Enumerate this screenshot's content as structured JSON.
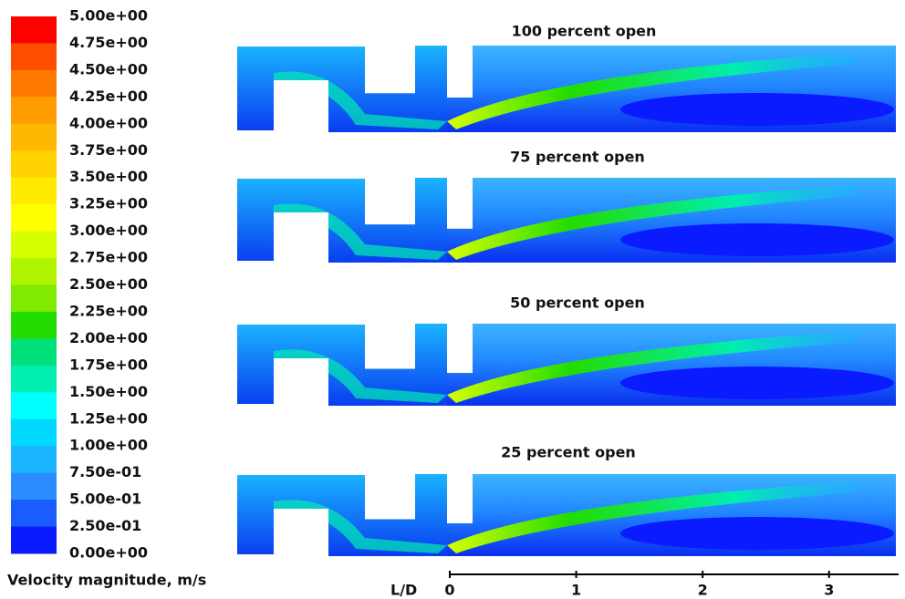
{
  "colorbar": {
    "title": "Velocity magnitude, m/s",
    "labels": [
      "5.00e+00",
      "4.75e+00",
      "4.50e+00",
      "4.25e+00",
      "4.00e+00",
      "3.75e+00",
      "3.50e+00",
      "3.25e+00",
      "3.00e+00",
      "2.75e+00",
      "2.50e+00",
      "2.25e+00",
      "2.00e+00",
      "1.75e+00",
      "1.50e+00",
      "1.25e+00",
      "1.00e+00",
      "7.50e-01",
      "5.00e-01",
      "2.50e-01",
      "0.00e+00"
    ],
    "colors": [
      "#ff0000",
      "#ff4d00",
      "#ff7a00",
      "#ff9c00",
      "#ffb800",
      "#ffd200",
      "#ffea00",
      "#ffff00",
      "#d8ff00",
      "#b0f500",
      "#80ea00",
      "#22dc00",
      "#00e07a",
      "#00eeb0",
      "#00ffff",
      "#00d8ff",
      "#1ab4ff",
      "#2a8cff",
      "#1a5cff",
      "#0a1cff"
    ]
  },
  "panels": [
    {
      "title": "100 percent open"
    },
    {
      "title": "75 percent open"
    },
    {
      "title": "50 percent open"
    },
    {
      "title": "25 percent open"
    }
  ],
  "axis": {
    "label": "L/D",
    "ticks": [
      0,
      1,
      2,
      3
    ],
    "lim": [
      0,
      3.55
    ]
  }
}
